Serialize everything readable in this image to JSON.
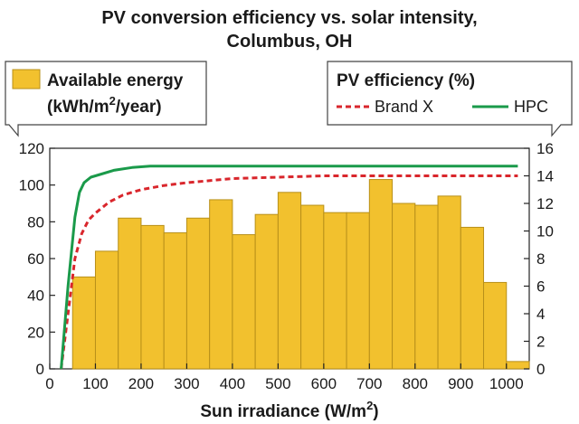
{
  "chart_data": {
    "type": "bar",
    "title_line1": "PV conversion efficiency vs. solar intensity,",
    "title_line2": "Columbus, OH",
    "xlabel": "Sun irradiance (W/m",
    "xlabel_sup": "2",
    "xlabel_end": ")",
    "xlim": [
      0,
      1050
    ],
    "ylim_left": [
      0,
      120
    ],
    "ylim_right": [
      0,
      16
    ],
    "x_ticks": [
      "0",
      "100",
      "200",
      "300",
      "400",
      "500",
      "600",
      "700",
      "800",
      "900",
      "1000"
    ],
    "y_left_ticks": [
      "0",
      "20",
      "40",
      "60",
      "80",
      "100",
      "120"
    ],
    "y_right_ticks": [
      "0",
      "2",
      "4",
      "6",
      "8",
      "10",
      "12",
      "14",
      "16"
    ],
    "grid": false,
    "bar_series": {
      "name_line1": "Available energy",
      "name_line2_pre": "(kWh/m",
      "name_line2_sup": "2",
      "name_line2_post": "/year)",
      "color": "#f2c12e",
      "bin_width": 50,
      "bin_starts": [
        50,
        100,
        150,
        200,
        250,
        300,
        350,
        400,
        450,
        500,
        550,
        600,
        650,
        700,
        750,
        800,
        850,
        900,
        950,
        1000
      ],
      "values": [
        50,
        64,
        82,
        78,
        74,
        82,
        92,
        73,
        84,
        96,
        89,
        85,
        85,
        103,
        90,
        89,
        94,
        77,
        47,
        4
      ]
    },
    "line_legend_title": "PV efficiency (%)",
    "line_series": [
      {
        "name": "Brand X",
        "color": "#d9262c",
        "dash": true,
        "x": [
          25,
          40,
          55,
          70,
          85,
          100,
          130,
          160,
          200,
          250,
          300,
          400,
          500,
          600,
          700,
          1000,
          1025
        ],
        "y": [
          0,
          4,
          8,
          9.8,
          10.8,
          11.3,
          12.1,
          12.6,
          13.0,
          13.3,
          13.5,
          13.8,
          13.9,
          14,
          14,
          14,
          14
        ]
      },
      {
        "name": "HPC",
        "color": "#1a9a4a",
        "dash": false,
        "x": [
          25,
          40,
          55,
          65,
          75,
          90,
          110,
          140,
          180,
          220,
          300,
          500,
          1000,
          1025
        ],
        "y": [
          0,
          6,
          11,
          12.8,
          13.5,
          13.9,
          14.1,
          14.4,
          14.6,
          14.7,
          14.7,
          14.7,
          14.7,
          14.7
        ]
      }
    ]
  }
}
